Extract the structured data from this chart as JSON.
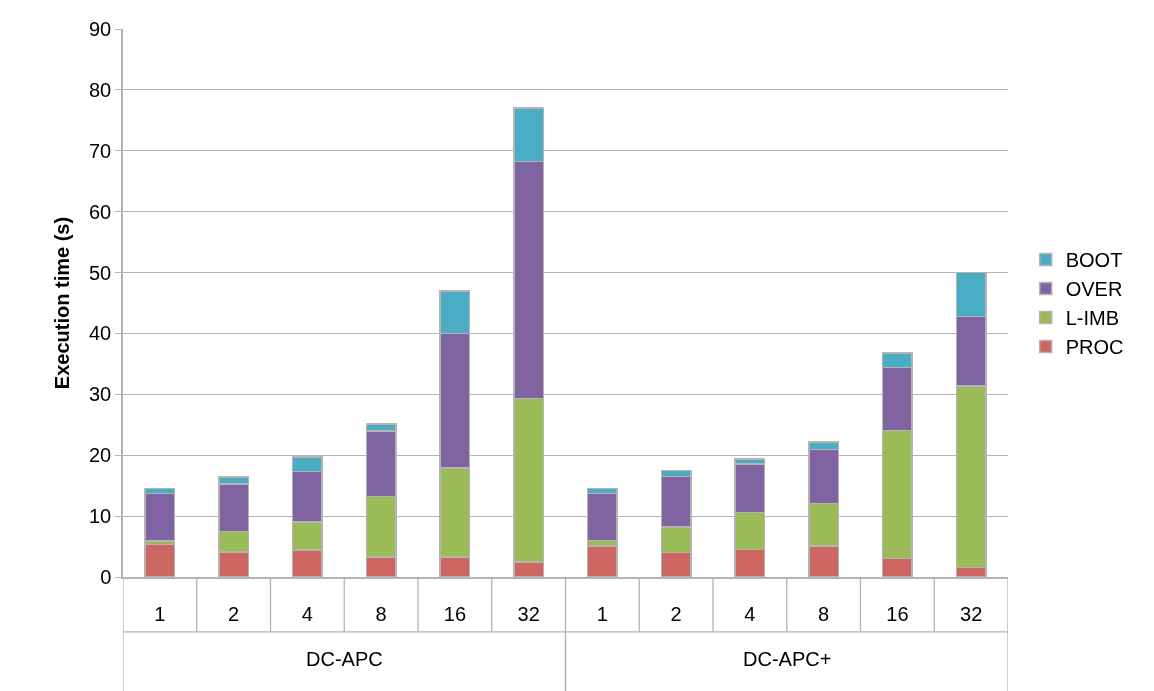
{
  "chart_data": {
    "type": "bar",
    "stacked": true,
    "ylabel": "Execution time (s)",
    "categories": [
      "1",
      "2",
      "4",
      "8",
      "16",
      "32",
      "1",
      "2",
      "4",
      "8",
      "16",
      "32"
    ],
    "annotations": [
      "DC-APC",
      "DC-APC+"
    ],
    "series": [
      {
        "name": "PROC",
        "color": "#cd6660",
        "values": [
          5.3,
          4.1,
          4.4,
          3.3,
          3.3,
          2.5,
          5.1,
          4.0,
          4.5,
          5.1,
          3.0,
          1.6
        ]
      },
      {
        "name": "L-IMB",
        "color": "#9bbb59",
        "values": [
          0.6,
          3.4,
          4.6,
          9.9,
          14.6,
          26.8,
          0.9,
          4.2,
          6.1,
          7.0,
          21.1,
          29.8
        ]
      },
      {
        "name": "OVER",
        "color": "#8064a2",
        "values": [
          7.8,
          7.8,
          8.3,
          10.8,
          22.1,
          38.9,
          7.7,
          8.3,
          8.0,
          8.8,
          10.3,
          11.4
        ]
      },
      {
        "name": "BOOT",
        "color": "#4bacc6",
        "values": [
          0.8,
          1.1,
          2.4,
          1.1,
          7.0,
          8.8,
          0.8,
          1.0,
          0.8,
          1.3,
          2.4,
          7.2
        ]
      }
    ],
    "ylim": [
      0,
      90
    ],
    "yticks": [
      0,
      10,
      20,
      30,
      40,
      50,
      60,
      70,
      80,
      90
    ],
    "grid": "y",
    "legend": "right"
  }
}
